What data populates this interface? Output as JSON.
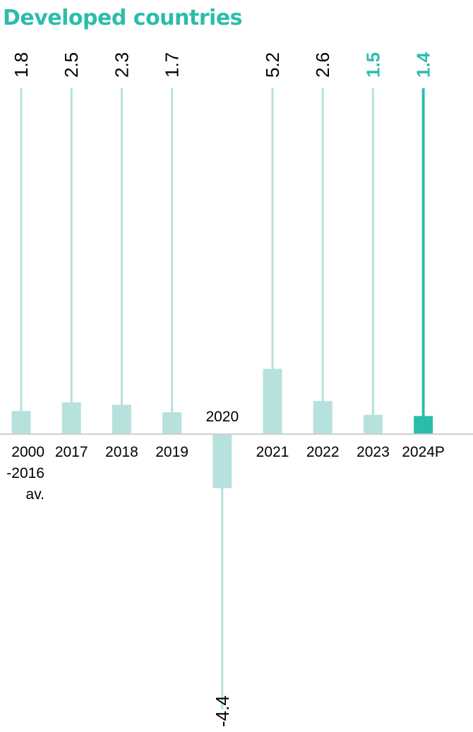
{
  "colors": {
    "title": "#2bbdab",
    "bar_light": "#b6e1dc",
    "bar_highlight": "#2bbdab",
    "baseline": "#cfcfcf",
    "text": "#000000"
  },
  "chart_data": {
    "type": "bar",
    "title": "Developed countries",
    "xlabel": "",
    "ylabel": "",
    "ylim": [
      -4.4,
      5.2
    ],
    "grid": false,
    "categories": [
      "2000\n-2016\nav.",
      "2017",
      "2018",
      "2019",
      "2020",
      "2021",
      "2022",
      "2023",
      "2024P"
    ],
    "values": [
      1.8,
      2.5,
      2.3,
      1.7,
      -4.4,
      5.2,
      2.6,
      1.5,
      1.4
    ],
    "value_labels": [
      "1.8",
      "2.5",
      "2.3",
      "1.7",
      "-4.4",
      "5.2",
      "2.6",
      "1.5",
      "1.4"
    ],
    "highlighted": [
      "2023",
      "2024P"
    ],
    "emphasized": "2024P"
  }
}
